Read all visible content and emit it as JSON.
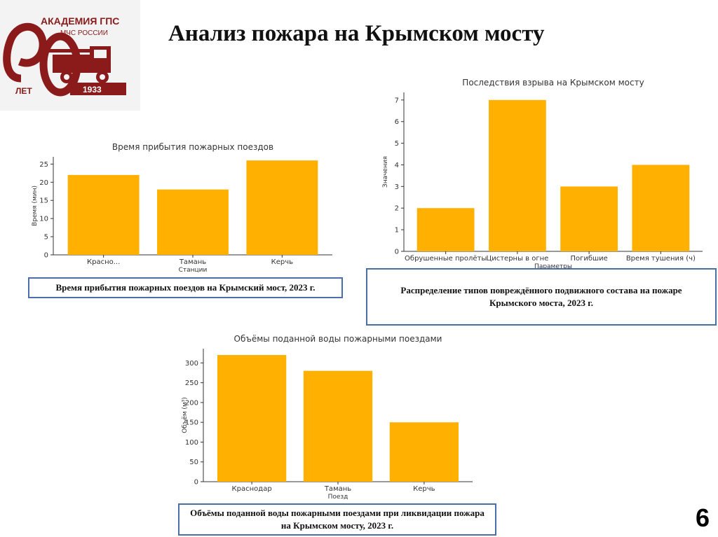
{
  "page": {
    "title": "Анализ пожара на Крымском мосту",
    "page_number": "6"
  },
  "logo": {
    "name": "АКАДЕМИЯ ГПС",
    "org": "МЧС РОССИИ",
    "years": "ЛЕТ",
    "year": "1933",
    "icon": "fire-truck-icon",
    "color": "#8b1a1a"
  },
  "colors": {
    "bar": "#ffb000",
    "caption_border": "#4a6fa5"
  },
  "captions": {
    "arrival": "Время прибытия пожарных поездов на Крымский мост, 2023 г.",
    "consequences": "Распределение типов повреждённого подвижного состава на пожаре Крымского моста, 2023 г.",
    "water": "Объёмы поданной воды пожарными поездами при ликвидации пожара на Крымском мосту, 2023 г."
  },
  "chart_data": [
    {
      "id": "arrival",
      "type": "bar",
      "title": "Время прибытия пожарных поездов",
      "xlabel": "Станции",
      "ylabel": "Время (мин)",
      "categories": [
        "Красно...",
        "Тамань",
        "Керчь"
      ],
      "values": [
        22,
        18,
        26
      ],
      "ylim": [
        0,
        27
      ],
      "yticks": [
        0,
        5,
        10,
        15,
        20,
        25
      ],
      "grid": false
    },
    {
      "id": "consequences",
      "type": "bar",
      "title": "Последствия взрыва на Крымском мосту",
      "xlabel": "Параметры",
      "ylabel": "Значения",
      "categories": [
        "Обрушенные пролёты",
        "Цистерны в огне",
        "Погибшие",
        "Время тушения (ч)"
      ],
      "values": [
        2,
        7,
        3,
        4
      ],
      "ylim": [
        0,
        7.35
      ],
      "yticks": [
        0,
        1,
        2,
        3,
        4,
        5,
        6,
        7
      ],
      "grid": false
    },
    {
      "id": "water",
      "type": "bar",
      "title": "Объёмы поданной воды пожарными поездами",
      "xlabel": "Поезд",
      "ylabel": "Объём (м³)",
      "categories": [
        "Краснодар",
        "Тамань",
        "Керчь"
      ],
      "values": [
        320,
        280,
        150
      ],
      "ylim": [
        0,
        336
      ],
      "yticks": [
        0,
        50,
        100,
        150,
        200,
        250,
        300
      ],
      "grid": false
    }
  ]
}
